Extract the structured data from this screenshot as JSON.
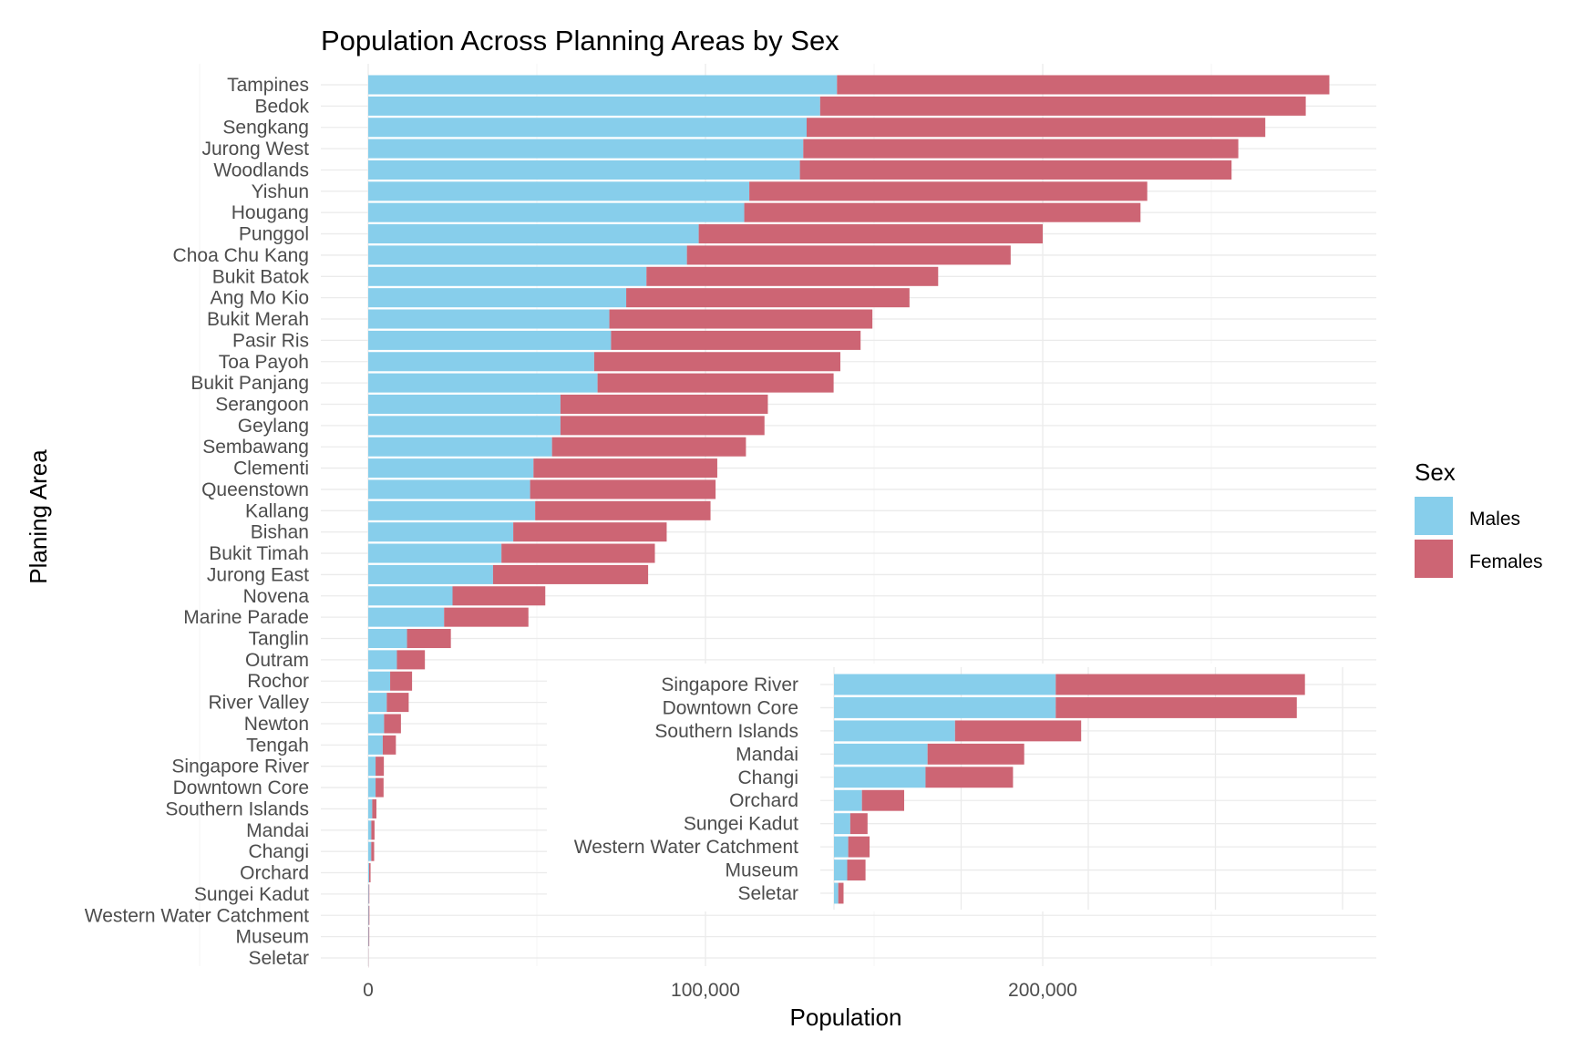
{
  "chart_data": [
    {
      "type": "bar",
      "orientation": "horizontal",
      "stacked": true,
      "title": "Population Across Planning Areas by Sex",
      "xlabel": "Population",
      "ylabel": "Planing Area",
      "xlim": [
        0,
        300000
      ],
      "x_ticks": [
        "0",
        "100,000",
        "200,000"
      ],
      "x_tick_values": [
        0,
        100000,
        200000
      ],
      "grid": true,
      "legend": {
        "title": "Sex",
        "position": "right"
      },
      "colors": {
        "Males": "#87CEEB",
        "Females": "#CD6574"
      },
      "categories": [
        "Tampines",
        "Bedok",
        "Sengkang",
        "Jurong West",
        "Woodlands",
        "Yishun",
        "Hougang",
        "Punggol",
        "Choa Chu Kang",
        "Bukit Batok",
        "Ang Mo Kio",
        "Bukit Merah",
        "Pasir Ris",
        "Toa Payoh",
        "Bukit Panjang",
        "Serangoon",
        "Geylang",
        "Sembawang",
        "Clementi",
        "Queenstown",
        "Kallang",
        "Bishan",
        "Bukit Timah",
        "Jurong East",
        "Novena",
        "Marine Parade",
        "Tanglin",
        "Outram",
        "Rochor",
        "River Valley",
        "Newton",
        "Tengah",
        "Singapore River",
        "Downtown Core",
        "Southern Islands",
        "Mandai",
        "Changi",
        "Orchard",
        "Sungei Kadut",
        "Western Water Catchment",
        "Museum",
        "Seletar"
      ],
      "series": [
        {
          "name": "Males",
          "values": [
            139000,
            134000,
            130000,
            129000,
            128000,
            113000,
            111500,
            98000,
            94500,
            82500,
            76500,
            71500,
            72000,
            67000,
            68000,
            57000,
            57000,
            54500,
            49000,
            48000,
            49500,
            43000,
            39500,
            37000,
            25000,
            22500,
            11500,
            8500,
            6500,
            5500,
            4700,
            4300,
            2180,
            2180,
            1190,
            920,
            900,
            275,
            160,
            140,
            130,
            42
          ]
        },
        {
          "name": "Females",
          "values": [
            146000,
            144000,
            136000,
            129000,
            128000,
            118000,
            117500,
            102000,
            96000,
            86500,
            84000,
            78000,
            74000,
            73000,
            70000,
            61500,
            60500,
            57500,
            54500,
            55000,
            52000,
            45500,
            45500,
            46000,
            27500,
            25000,
            13000,
            8300,
            6500,
            6500,
            5000,
            3900,
            2450,
            2370,
            1240,
            950,
            860,
            415,
            170,
            210,
            180,
            52
          ]
        }
      ]
    },
    {
      "type": "bar",
      "orientation": "horizontal",
      "stacked": true,
      "inset": true,
      "categories": [
        "Singapore River",
        "Downtown Core",
        "Southern Islands",
        "Mandai",
        "Changi",
        "Orchard",
        "Sungei Kadut",
        "Western Water Catchment",
        "Museum",
        "Seletar"
      ],
      "series": [
        {
          "name": "Males",
          "values": [
            2180,
            2180,
            1190,
            920,
            900,
            275,
            160,
            140,
            130,
            42
          ]
        },
        {
          "name": "Females",
          "values": [
            2450,
            2370,
            1240,
            950,
            860,
            415,
            170,
            210,
            180,
            52
          ]
        }
      ]
    }
  ]
}
